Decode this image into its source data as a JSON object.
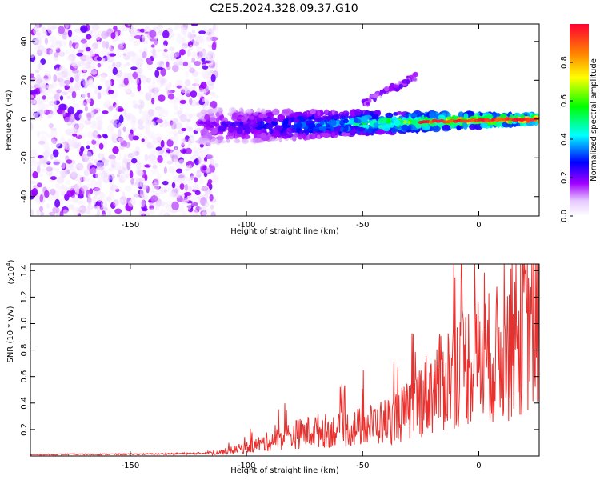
{
  "figure": {
    "title": "C2E5.2024.328.09.37.G10"
  },
  "chart_data": [
    {
      "type": "heatmap",
      "title": "C2E5.2024.328.09.37.G10",
      "xlabel": "Height of straight line (km)",
      "ylabel": "Frequency (Hz)",
      "xlim": [
        -193,
        26
      ],
      "ylim": [
        -50,
        49
      ],
      "xticks": [
        -150,
        -100,
        -50,
        0
      ],
      "yticks": [
        -40,
        -20,
        0,
        20,
        40
      ],
      "colorbar": {
        "label": "Normalized spectral amplitude",
        "range": [
          0.0,
          1.0
        ],
        "ticks": [
          "0.0",
          "0.2",
          "0.4",
          "0.6",
          "0.8"
        ],
        "tick_values": [
          0.0,
          0.2,
          0.4,
          0.6,
          0.8
        ],
        "colormap": [
          "#ffffff",
          "#a000ff",
          "#0000ff",
          "#00ffff",
          "#00ff00",
          "#ffff00",
          "#ff8000",
          "#ff0033"
        ]
      },
      "regions": [
        {
          "name": "noise",
          "x_range": [
            -193,
            -113
          ],
          "freq_range": [
            -50,
            49
          ],
          "amplitude": [
            0.02,
            0.2
          ]
        },
        {
          "name": "track",
          "x_range": [
            -120,
            26
          ],
          "freq_start": -4,
          "freq_end": 0,
          "amplitude_start": 0.2,
          "amplitude_end": 1.0
        },
        {
          "name": "branch",
          "x_range": [
            -50,
            -27
          ],
          "freq_start": 8,
          "freq_end": 22,
          "amplitude": [
            0.1,
            0.22
          ]
        }
      ]
    },
    {
      "type": "line",
      "xlabel": "Height of straight line (km)",
      "ylabel": "SNR (10 * v/v)",
      "y_scale_label": "(x10",
      "y_scale_exp": "4",
      "y_scale_close": ")",
      "xlim": [
        -193,
        26
      ],
      "ylim": [
        0,
        1.45
      ],
      "xticks": [
        -150,
        -100,
        -50,
        0
      ],
      "yticks": [
        0.2,
        0.4,
        0.6,
        0.8,
        1.0,
        1.2,
        1.4
      ],
      "ytick_labels": [
        "0.2",
        "0.4",
        "0.6",
        "0.8",
        "1.0",
        "1.2",
        "1.4"
      ],
      "color": "#e8312e",
      "series": [
        {
          "name": "SNR",
          "x": [
            -193,
            -180,
            -160,
            -140,
            -120,
            -110,
            -100,
            -90,
            -80,
            -70,
            -60,
            -50,
            -40,
            -30,
            -25,
            -20,
            -15,
            -10,
            -5,
            0,
            5,
            10,
            15,
            20,
            26
          ],
          "y": [
            0.01,
            0.012,
            0.013,
            0.015,
            0.02,
            0.04,
            0.08,
            0.14,
            0.2,
            0.24,
            0.24,
            0.28,
            0.33,
            0.42,
            0.55,
            0.62,
            0.72,
            0.82,
            0.88,
            0.9,
            0.93,
            0.98,
            1.08,
            1.22,
            1.32
          ]
        }
      ]
    }
  ]
}
